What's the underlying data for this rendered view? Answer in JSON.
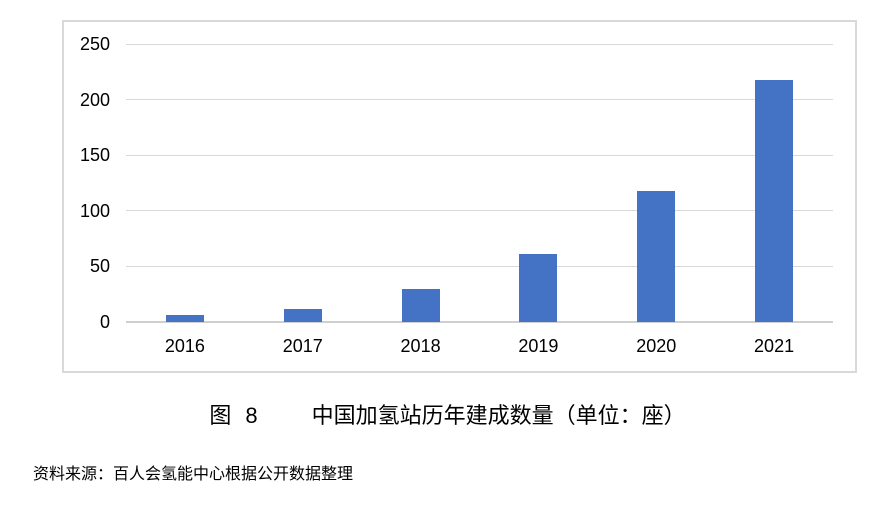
{
  "chart_data": {
    "type": "bar",
    "title": "中国加氢站历年建成数量（单位：座）",
    "categories": [
      "2016",
      "2017",
      "2018",
      "2019",
      "2020",
      "2021"
    ],
    "values": [
      6,
      12,
      30,
      61,
      118,
      218
    ],
    "xlabel": "",
    "ylabel": "",
    "ylim": [
      0,
      250
    ],
    "yticks": [
      0,
      50,
      100,
      150,
      200,
      250
    ],
    "grid": true,
    "legend": "none",
    "bar_color": "#4472C4"
  },
  "caption": {
    "figure_label": "图 8",
    "title": "中国加氢站历年建成数量（单位：座）"
  },
  "source": {
    "text": "资料来源：百人会氢能中心根据公开数据整理"
  },
  "colors": {
    "bar": "#4472C4",
    "gridline": "#D9D9D9",
    "axis": "#CFCFCF",
    "border": "#D9D9D9",
    "text": "#000000",
    "background": "#ffffff"
  }
}
